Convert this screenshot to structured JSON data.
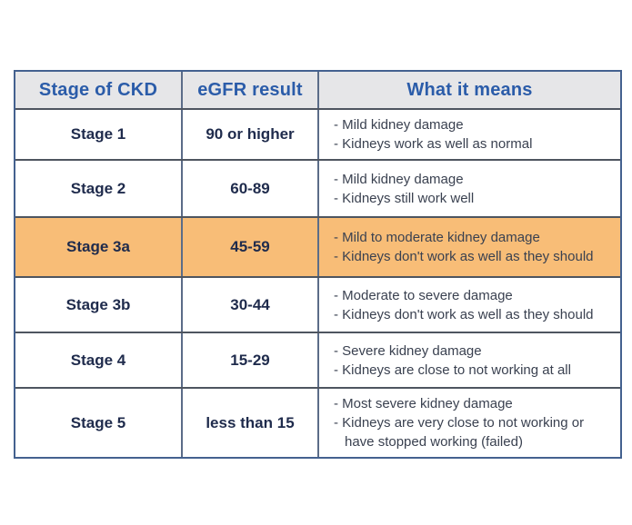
{
  "colors": {
    "header_bg": "#e6e6e8",
    "header_text": "#2b5ca9",
    "stage_text": "#1f2b4c",
    "meaning_text": "#3a4150",
    "highlight_bg": "#f8bd77",
    "row_bg": "#ffffff",
    "border_outer": "#44618f",
    "border_vertical": "#5b6c88",
    "border_horizontal": "#4e5560"
  },
  "table": {
    "columns": [
      {
        "key": "stage",
        "label": "Stage of CKD"
      },
      {
        "key": "egfr",
        "label": "eGFR result"
      },
      {
        "key": "meaning",
        "label": "What it means"
      }
    ],
    "rows": [
      {
        "stage": "Stage 1",
        "egfr": "90 or higher",
        "meaning": [
          "- Mild kidney damage",
          "- Kidneys work as well as normal"
        ],
        "highlight": false
      },
      {
        "stage": "Stage 2",
        "egfr": "60-89",
        "meaning": [
          "- Mild kidney damage",
          "- Kidneys still work well"
        ],
        "highlight": false
      },
      {
        "stage": "Stage 3a",
        "egfr": "45-59",
        "meaning": [
          "- Mild to moderate kidney damage",
          "- Kidneys don't work as well as they should"
        ],
        "highlight": true
      },
      {
        "stage": "Stage 3b",
        "egfr": "30-44",
        "meaning": [
          "- Moderate to severe damage",
          "- Kidneys don't work as well as they should"
        ],
        "highlight": false
      },
      {
        "stage": "Stage 4",
        "egfr": "15-29",
        "meaning": [
          "- Severe kidney damage",
          "- Kidneys are close to not working at all"
        ],
        "highlight": false
      },
      {
        "stage": "Stage 5",
        "egfr": "less than 15",
        "meaning": [
          "- Most severe kidney damage",
          "- Kidneys are very close to not working or have stopped working (failed)"
        ],
        "highlight": false
      }
    ]
  },
  "chart_data": {
    "type": "table",
    "title": "",
    "columns": [
      "Stage of CKD",
      "eGFR result",
      "What it means"
    ],
    "rows": [
      [
        "Stage 1",
        "90 or higher",
        "Mild kidney damage; Kidneys work as well as normal"
      ],
      [
        "Stage 2",
        "60-89",
        "Mild kidney damage; Kidneys still work well"
      ],
      [
        "Stage 3a",
        "45-59",
        "Mild to moderate kidney damage; Kidneys don't work as well as they should"
      ],
      [
        "Stage 3b",
        "30-44",
        "Moderate to severe damage; Kidneys don't work as well as they should"
      ],
      [
        "Stage 4",
        "15-29",
        "Severe kidney damage; Kidneys are close to not working at all"
      ],
      [
        "Stage 5",
        "less than 15",
        "Most severe kidney damage; Kidneys are very close to not working or have stopped working (failed)"
      ]
    ],
    "highlighted_row": "Stage 3a",
    "layout_hints": {
      "header_style": "bold blue text on light gray",
      "highlight_style": "orange row background",
      "grid": "on"
    }
  }
}
